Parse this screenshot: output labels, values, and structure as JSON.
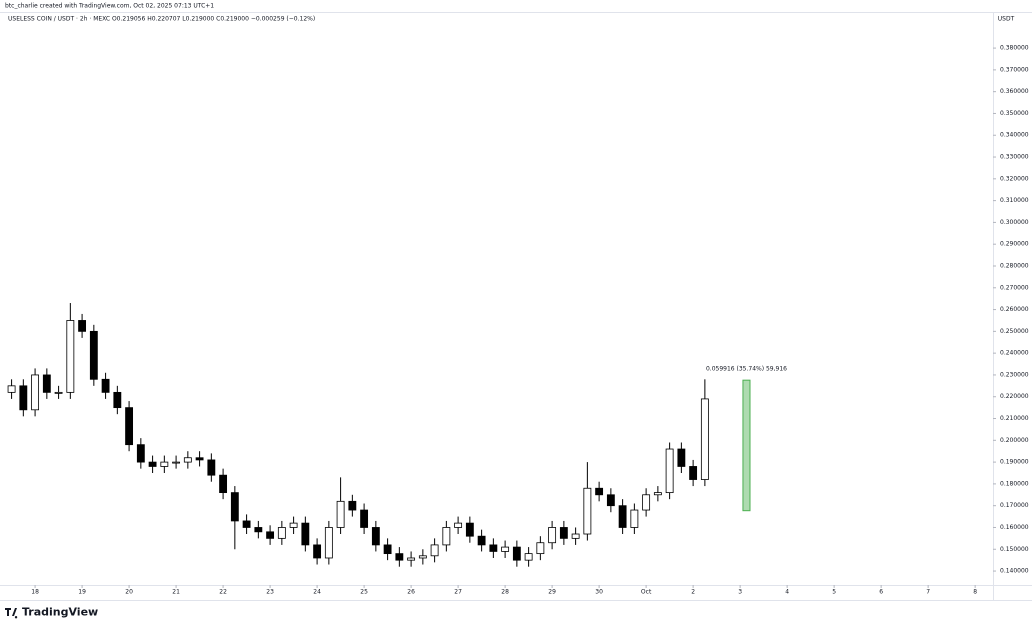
{
  "header": {
    "credit": "btc_charlie created with TradingView.com, Oct 02, 2025 07:13 UTC+1"
  },
  "footer": {
    "brand": "TradingView"
  },
  "chart_data": {
    "type": "candlestick",
    "title": "USELESS COIN / USDT · 2h · MEXC  O0.219056 H0.220707 L0.219000 C0.219000 −0.000259 (−0.12%)",
    "y_axis_label": "USDT",
    "up_color": "#ffffff",
    "down_color": "#000000",
    "border_color": "#000000",
    "grid": false,
    "xlim": [
      -0.64,
      20.38
    ],
    "xticks": [
      {
        "value": 0,
        "label": "18"
      },
      {
        "value": 1,
        "label": "19"
      },
      {
        "value": 2,
        "label": "20"
      },
      {
        "value": 3,
        "label": "21"
      },
      {
        "value": 4,
        "label": "22"
      },
      {
        "value": 5,
        "label": "23"
      },
      {
        "value": 6,
        "label": "24"
      },
      {
        "value": 7,
        "label": "25"
      },
      {
        "value": 8,
        "label": "26"
      },
      {
        "value": 9,
        "label": "27"
      },
      {
        "value": 10,
        "label": "28"
      },
      {
        "value": 11,
        "label": "29"
      },
      {
        "value": 12,
        "label": "30"
      },
      {
        "value": 13,
        "label": "Oct"
      },
      {
        "value": 14,
        "label": "2"
      },
      {
        "value": 15,
        "label": "3"
      },
      {
        "value": 16,
        "label": "4"
      },
      {
        "value": 17,
        "label": "5"
      },
      {
        "value": 18,
        "label": "6"
      },
      {
        "value": 19,
        "label": "7"
      },
      {
        "value": 20,
        "label": "8"
      }
    ],
    "ylim": [
      0.1336,
      0.3961
    ],
    "yticks": [
      {
        "value": 0.14,
        "label": "0.140000"
      },
      {
        "value": 0.15,
        "label": "0.150000"
      },
      {
        "value": 0.16,
        "label": "0.160000"
      },
      {
        "value": 0.17,
        "label": "0.170000"
      },
      {
        "value": 0.18,
        "label": "0.180000"
      },
      {
        "value": 0.19,
        "label": "0.190000"
      },
      {
        "value": 0.2,
        "label": "0.200000"
      },
      {
        "value": 0.21,
        "label": "0.210000"
      },
      {
        "value": 0.22,
        "label": "0.220000"
      },
      {
        "value": 0.23,
        "label": "0.230000"
      },
      {
        "value": 0.24,
        "label": "0.240000"
      },
      {
        "value": 0.25,
        "label": "0.250000"
      },
      {
        "value": 0.26,
        "label": "0.260000"
      },
      {
        "value": 0.27,
        "label": "0.270000"
      },
      {
        "value": 0.28,
        "label": "0.280000"
      },
      {
        "value": 0.29,
        "label": "0.290000"
      },
      {
        "value": 0.3,
        "label": "0.300000"
      },
      {
        "value": 0.31,
        "label": "0.310000"
      },
      {
        "value": 0.32,
        "label": "0.320000"
      },
      {
        "value": 0.33,
        "label": "0.330000"
      },
      {
        "value": 0.34,
        "label": "0.340000"
      },
      {
        "value": 0.35,
        "label": "0.350000"
      },
      {
        "value": 0.36,
        "label": "0.360000"
      },
      {
        "value": 0.37,
        "label": "0.370000"
      },
      {
        "value": 0.38,
        "label": "0.380000"
      }
    ],
    "x": [
      -0.5,
      -0.25,
      0,
      0.25,
      0.5,
      0.75,
      1,
      1.25,
      1.5,
      1.75,
      2,
      2.25,
      2.5,
      2.75,
      3,
      3.25,
      3.5,
      3.75,
      4,
      4.25,
      4.5,
      4.75,
      5,
      5.25,
      5.5,
      5.75,
      6,
      6.25,
      6.5,
      6.75,
      7,
      7.25,
      7.5,
      7.75,
      8,
      8.25,
      8.5,
      8.75,
      9,
      9.25,
      9.5,
      9.75,
      10,
      10.25,
      10.5,
      10.75,
      11,
      11.25,
      11.5,
      11.75,
      12,
      12.25,
      12.5,
      12.75,
      13,
      13.25,
      13.5,
      13.75,
      14,
      14.25
    ],
    "open": [
      0.222,
      0.225,
      0.214,
      0.23,
      0.222,
      0.222,
      0.255,
      0.25,
      0.228,
      0.222,
      0.215,
      0.198,
      0.19,
      0.188,
      0.19,
      0.19,
      0.192,
      0.191,
      0.184,
      0.176,
      0.163,
      0.16,
      0.158,
      0.155,
      0.16,
      0.162,
      0.152,
      0.146,
      0.16,
      0.172,
      0.168,
      0.16,
      0.152,
      0.148,
      0.145,
      0.146,
      0.147,
      0.152,
      0.16,
      0.162,
      0.156,
      0.152,
      0.149,
      0.151,
      0.145,
      0.148,
      0.153,
      0.16,
      0.155,
      0.157,
      0.178,
      0.175,
      0.17,
      0.16,
      0.168,
      0.175,
      0.176,
      0.196,
      0.188,
      0.182
    ],
    "high": [
      0.228,
      0.228,
      0.233,
      0.233,
      0.225,
      0.263,
      0.258,
      0.253,
      0.231,
      0.225,
      0.218,
      0.201,
      0.193,
      0.193,
      0.193,
      0.195,
      0.195,
      0.194,
      0.187,
      0.179,
      0.166,
      0.163,
      0.161,
      0.163,
      0.165,
      0.165,
      0.155,
      0.163,
      0.183,
      0.175,
      0.171,
      0.163,
      0.155,
      0.151,
      0.149,
      0.15,
      0.155,
      0.163,
      0.165,
      0.165,
      0.159,
      0.155,
      0.154,
      0.154,
      0.151,
      0.156,
      0.163,
      0.163,
      0.16,
      0.19,
      0.181,
      0.178,
      0.173,
      0.171,
      0.178,
      0.179,
      0.199,
      0.199,
      0.191,
      0.228
    ],
    "low": [
      0.219,
      0.211,
      0.211,
      0.219,
      0.219,
      0.219,
      0.247,
      0.225,
      0.219,
      0.212,
      0.195,
      0.187,
      0.185,
      0.185,
      0.187,
      0.187,
      0.188,
      0.181,
      0.173,
      0.15,
      0.157,
      0.155,
      0.152,
      0.152,
      0.157,
      0.149,
      0.143,
      0.143,
      0.157,
      0.165,
      0.157,
      0.149,
      0.145,
      0.142,
      0.142,
      0.143,
      0.144,
      0.149,
      0.157,
      0.153,
      0.149,
      0.146,
      0.146,
      0.142,
      0.142,
      0.145,
      0.15,
      0.152,
      0.152,
      0.154,
      0.172,
      0.167,
      0.157,
      0.157,
      0.165,
      0.172,
      0.173,
      0.185,
      0.179,
      0.179
    ],
    "close": [
      0.225,
      0.214,
      0.23,
      0.222,
      0.222,
      0.255,
      0.25,
      0.228,
      0.222,
      0.215,
      0.198,
      0.19,
      0.188,
      0.19,
      0.19,
      0.192,
      0.191,
      0.184,
      0.176,
      0.163,
      0.16,
      0.158,
      0.155,
      0.16,
      0.162,
      0.152,
      0.146,
      0.16,
      0.172,
      0.168,
      0.16,
      0.152,
      0.148,
      0.145,
      0.146,
      0.147,
      0.152,
      0.16,
      0.162,
      0.156,
      0.152,
      0.149,
      0.151,
      0.145,
      0.148,
      0.153,
      0.16,
      0.155,
      0.157,
      0.178,
      0.175,
      0.17,
      0.16,
      0.168,
      0.175,
      0.176,
      0.196,
      0.188,
      0.182,
      0.219
    ],
    "measure": {
      "label": "0.059916 (35.74%) 59,916",
      "from": 0.1677,
      "to": 0.2276,
      "x": [
        15.06,
        15.21
      ],
      "color": "#4caf50"
    }
  }
}
